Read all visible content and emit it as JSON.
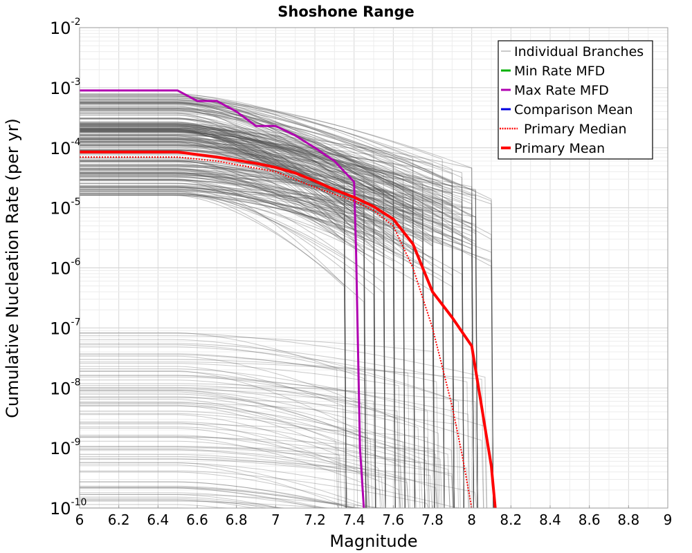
{
  "chart_data": {
    "type": "line",
    "title": "Shoshone Range",
    "xlabel": "Magnitude",
    "ylabel": "Cumulative Nucleation Rate (per yr)",
    "xlim": [
      6,
      9
    ],
    "ylim": [
      1e-10,
      0.01
    ],
    "yscale": "log",
    "grid": true,
    "legend_position": "top-right",
    "x_ticks": [
      {
        "value": 6,
        "label": "6"
      },
      {
        "value": 6.2,
        "label": "6.2"
      },
      {
        "value": 6.4,
        "label": "6.4"
      },
      {
        "value": 6.6,
        "label": "6.6"
      },
      {
        "value": 6.8,
        "label": "6.8"
      },
      {
        "value": 7,
        "label": "7"
      },
      {
        "value": 7.2,
        "label": "7.2"
      },
      {
        "value": 7.4,
        "label": "7.4"
      },
      {
        "value": 7.6,
        "label": "7.6"
      },
      {
        "value": 7.8,
        "label": "7.8"
      },
      {
        "value": 8,
        "label": "8"
      },
      {
        "value": 8.2,
        "label": "8.2"
      },
      {
        "value": 8.4,
        "label": "8.4"
      },
      {
        "value": 8.6,
        "label": "8.6"
      },
      {
        "value": 8.8,
        "label": "8.8"
      },
      {
        "value": 9,
        "label": "9"
      }
    ],
    "y_ticks": [
      {
        "exp": -10,
        "base": "10",
        "power": "-10"
      },
      {
        "exp": -9,
        "base": "10",
        "power": "-9"
      },
      {
        "exp": -8,
        "base": "10",
        "power": "-8"
      },
      {
        "exp": -7,
        "base": "10",
        "power": "-7"
      },
      {
        "exp": -6,
        "base": "10",
        "power": "-6"
      },
      {
        "exp": -5,
        "base": "10",
        "power": "-5"
      },
      {
        "exp": -4,
        "base": "10",
        "power": "-4"
      },
      {
        "exp": -3,
        "base": "10",
        "power": "-3"
      },
      {
        "exp": -2,
        "base": "10",
        "power": "-2"
      }
    ],
    "series": [
      {
        "name": "Individual Branches",
        "color": "#4d4d4d",
        "style": "thin",
        "note_count_shown": "many",
        "x": [],
        "y": []
      },
      {
        "name": "Min Rate MFD",
        "color": "#00b000",
        "style": "solid",
        "x": [],
        "y": []
      },
      {
        "name": "Max Rate MFD",
        "color": "#b000b0",
        "style": "solid",
        "x": [
          6.0,
          6.5,
          6.6,
          6.7,
          6.8,
          6.9,
          7.0,
          7.1,
          7.2,
          7.3,
          7.4,
          7.41,
          7.43,
          7.45
        ],
        "y": [
          0.0009,
          0.0009,
          0.0006,
          0.0006,
          0.0004,
          0.00023,
          0.00023,
          0.00016,
          0.0001,
          6e-05,
          2.7e-05,
          2e-06,
          1e-09,
          1e-10
        ]
      },
      {
        "name": "Comparison Mean",
        "color": "#0000e0",
        "style": "solid",
        "x": [],
        "y": []
      },
      {
        "name": "Primary Median",
        "color": "#ff0000",
        "style": "dotted",
        "x": [
          6.0,
          6.5,
          6.7,
          7.0,
          7.2,
          7.4,
          7.5,
          7.6,
          7.7,
          7.8,
          7.9,
          7.95,
          8.0
        ],
        "y": [
          7e-05,
          7e-05,
          6e-05,
          4e-05,
          2.2e-05,
          1.3e-05,
          9e-06,
          5e-06,
          1e-06,
          1e-07,
          5e-09,
          8e-10,
          1e-10
        ]
      },
      {
        "name": "Primary Mean",
        "color": "#ff0000",
        "style": "thick",
        "x": [
          6.0,
          6.5,
          6.7,
          6.9,
          7.0,
          7.1,
          7.2,
          7.3,
          7.4,
          7.5,
          7.6,
          7.7,
          7.8,
          7.9,
          8.0,
          8.1,
          8.12
        ],
        "y": [
          8.5e-05,
          8.5e-05,
          7e-05,
          5.5e-05,
          4.7e-05,
          3.8e-05,
          2.8e-05,
          2e-05,
          1.5e-05,
          1.05e-05,
          6.5e-06,
          2.5e-06,
          4e-07,
          1.5e-07,
          5e-08,
          5e-10,
          1e-10
        ]
      }
    ]
  }
}
